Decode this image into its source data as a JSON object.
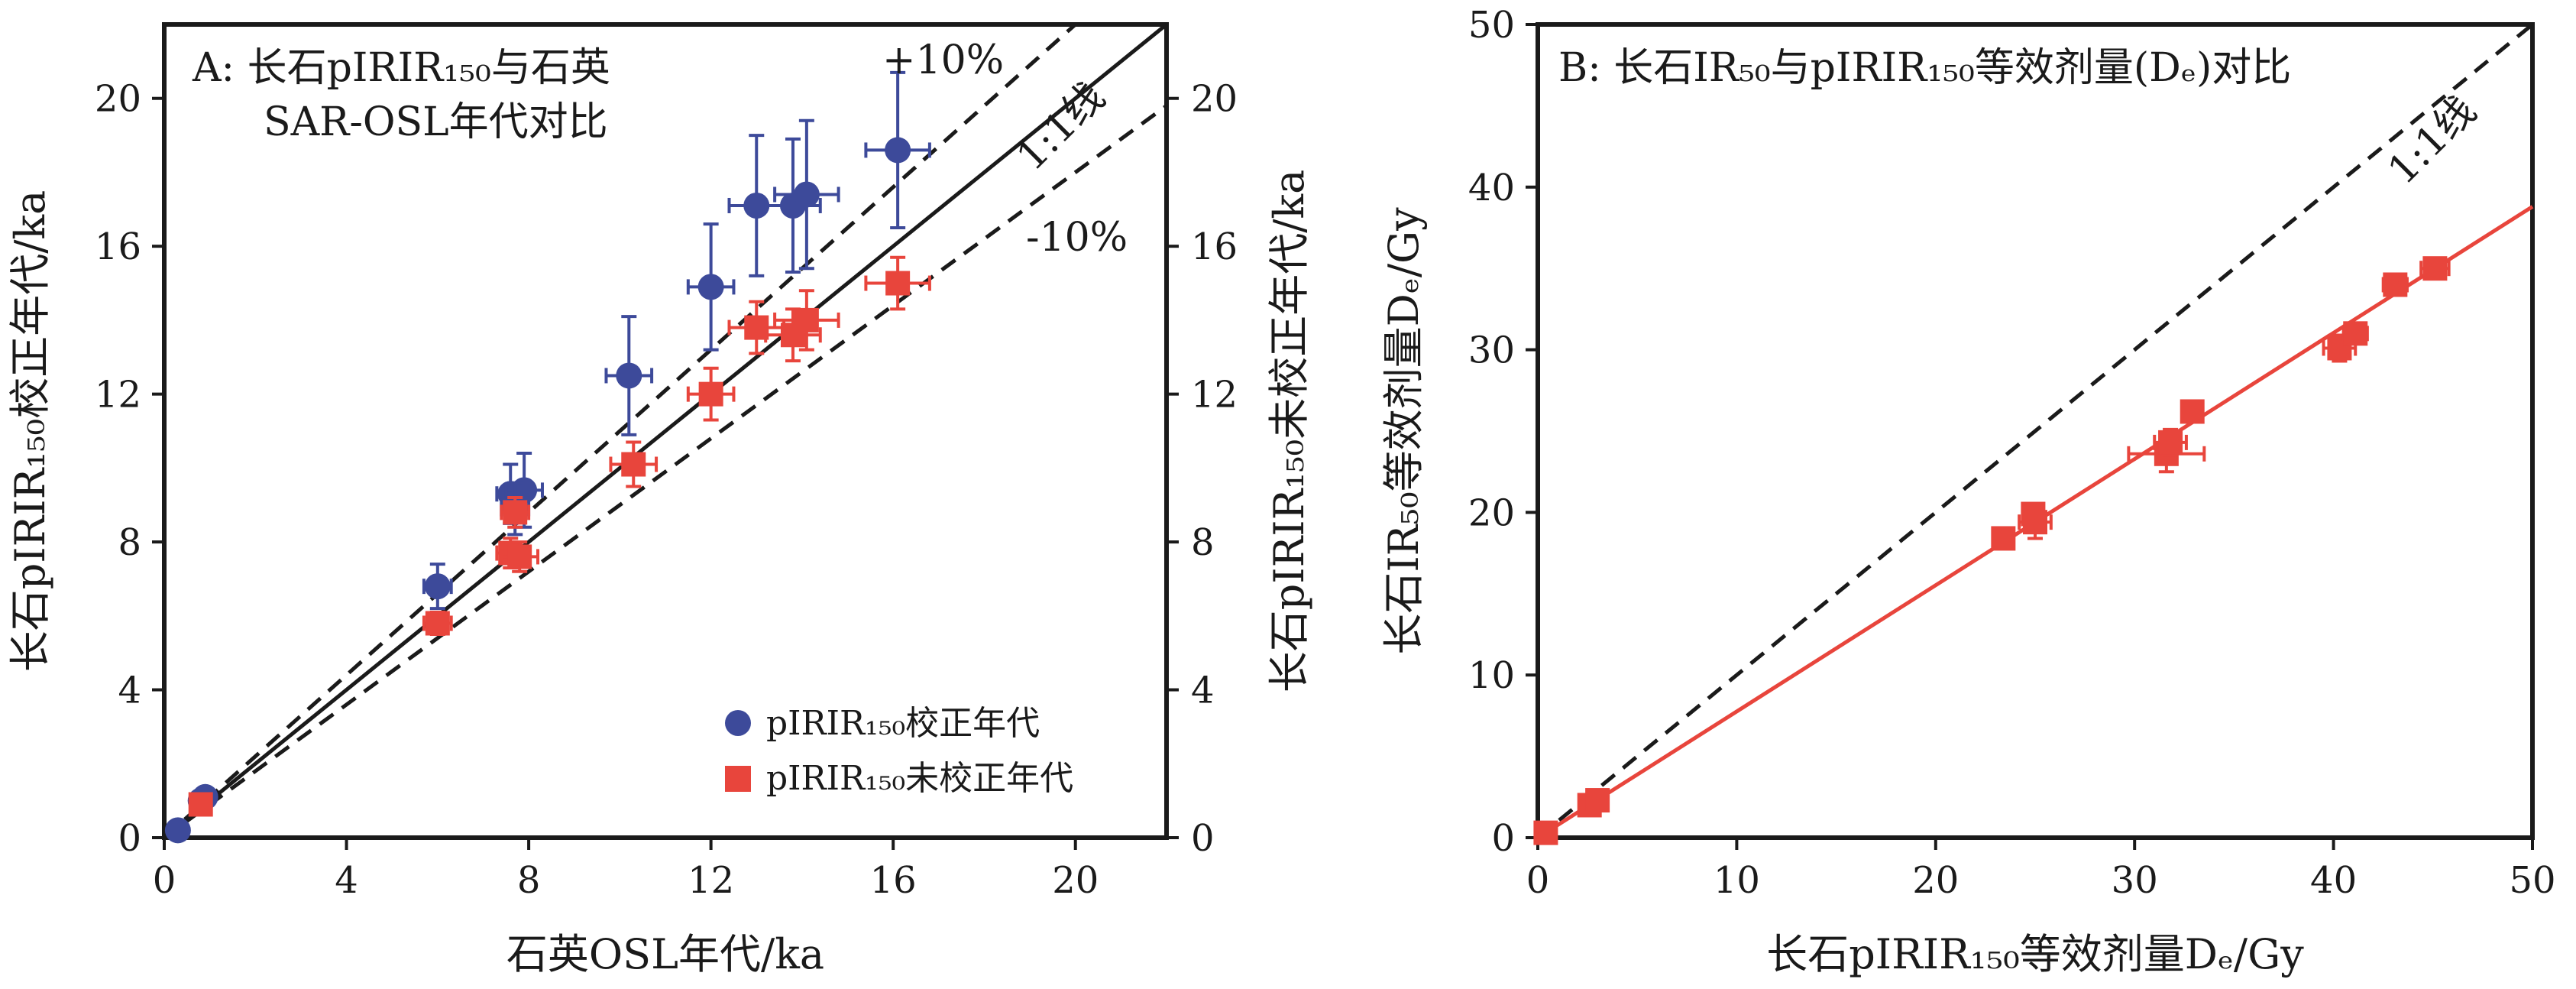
{
  "chart_data": [
    {
      "type": "scatter",
      "panel_label": "A",
      "title": "A: 长石pIRIR₁₅₀与石英",
      "subtitle": "SAR-OSL年代对比",
      "xlabel": "石英OSL年代/ka",
      "ylabel": "长石pIRIR₁₅₀校正年代/ka",
      "ylabel_right": "长石pIRIR₁₅₀未校正年代/ka",
      "xlim": [
        0,
        22
      ],
      "ylim": [
        0,
        22
      ],
      "xticks": [
        "0",
        "4",
        "8",
        "12",
        "16",
        "20"
      ],
      "yticks": [
        "0",
        "4",
        "8",
        "12",
        "16",
        "20"
      ],
      "yticks_right": [
        "0",
        "4",
        "8",
        "12",
        "16",
        "20"
      ],
      "grid": false,
      "legend_position": "bottom-right",
      "lines": [
        {
          "label": "1:1线",
          "slope": 1.0,
          "style": "solid"
        },
        {
          "label": "+10%",
          "slope": 1.1,
          "style": "dashed"
        },
        {
          "label": "-10%",
          "slope": 0.9,
          "style": "dashed"
        }
      ],
      "series": [
        {
          "name": "pIRIR₁₅₀校正年代",
          "marker": "circle",
          "color": "#3d4a9a",
          "points": [
            {
              "x": 0.3,
              "y": 0.2,
              "xerr": 0.05,
              "yerr": 0.05
            },
            {
              "x": 0.8,
              "y": 1.0,
              "xerr": 0.05,
              "yerr": 0.1
            },
            {
              "x": 0.9,
              "y": 1.1,
              "xerr": 0.05,
              "yerr": 0.1
            },
            {
              "x": 6.0,
              "y": 6.8,
              "xerr": 0.3,
              "yerr": 0.6
            },
            {
              "x": 7.6,
              "y": 9.3,
              "xerr": 0.3,
              "yerr": 0.8
            },
            {
              "x": 7.9,
              "y": 9.4,
              "xerr": 0.4,
              "yerr": 1.0
            },
            {
              "x": 7.7,
              "y": 8.9,
              "xerr": 0.3,
              "yerr": 0.7
            },
            {
              "x": 10.2,
              "y": 12.5,
              "xerr": 0.5,
              "yerr": 1.6
            },
            {
              "x": 12.0,
              "y": 14.9,
              "xerr": 0.5,
              "yerr": 1.7
            },
            {
              "x": 13.0,
              "y": 17.1,
              "xerr": 0.6,
              "yerr": 1.9
            },
            {
              "x": 13.8,
              "y": 17.1,
              "xerr": 0.6,
              "yerr": 1.8
            },
            {
              "x": 14.1,
              "y": 17.4,
              "xerr": 0.7,
              "yerr": 2.0
            },
            {
              "x": 16.1,
              "y": 18.6,
              "xerr": 0.7,
              "yerr": 2.1
            }
          ]
        },
        {
          "name": "pIRIR₁₅₀未校正年代",
          "marker": "square",
          "color": "#e8453c",
          "points": [
            {
              "x": 0.8,
              "y": 0.9,
              "xerr": 0.05,
              "yerr": 0.1
            },
            {
              "x": 6.0,
              "y": 5.8,
              "xerr": 0.3,
              "yerr": 0.3
            },
            {
              "x": 7.6,
              "y": 7.7,
              "xerr": 0.3,
              "yerr": 0.4
            },
            {
              "x": 7.8,
              "y": 7.6,
              "xerr": 0.4,
              "yerr": 0.4
            },
            {
              "x": 7.7,
              "y": 8.8,
              "xerr": 0.3,
              "yerr": 0.4
            },
            {
              "x": 10.3,
              "y": 10.1,
              "xerr": 0.5,
              "yerr": 0.6
            },
            {
              "x": 12.0,
              "y": 12.0,
              "xerr": 0.5,
              "yerr": 0.7
            },
            {
              "x": 13.0,
              "y": 13.8,
              "xerr": 0.6,
              "yerr": 0.7
            },
            {
              "x": 13.8,
              "y": 13.6,
              "xerr": 0.6,
              "yerr": 0.7
            },
            {
              "x": 14.1,
              "y": 14.0,
              "xerr": 0.7,
              "yerr": 0.8
            },
            {
              "x": 16.1,
              "y": 15.0,
              "xerr": 0.7,
              "yerr": 0.7
            }
          ]
        }
      ]
    },
    {
      "type": "scatter",
      "panel_label": "B",
      "title": "B: 长石IR₅₀与pIRIR₁₅₀等效剂量(Dₑ)对比",
      "xlabel": "长石pIRIR₁₅₀等效剂量Dₑ/Gy",
      "ylabel": "长石IR₅₀等效剂量Dₑ/Gy",
      "xlim": [
        0,
        50
      ],
      "ylim": [
        0,
        50
      ],
      "xticks": [
        "0",
        "10",
        "20",
        "30",
        "40",
        "50"
      ],
      "yticks": [
        "0",
        "10",
        "20",
        "30",
        "40",
        "50"
      ],
      "grid": false,
      "lines": [
        {
          "label": "1:1线",
          "slope": 1.0,
          "intercept": 0,
          "style": "dashed",
          "color": "#1a1a1a"
        },
        {
          "label": "",
          "slope": 0.776,
          "intercept": 0,
          "style": "solid",
          "color": "#e8453c"
        }
      ],
      "series": [
        {
          "name": "",
          "marker": "square",
          "color": "#e8453c",
          "points": [
            {
              "x": 0.4,
              "y": 0.3,
              "xerr": 0.1,
              "yerr": 0.1
            },
            {
              "x": 2.6,
              "y": 2.0,
              "xerr": 0.3,
              "yerr": 0.3
            },
            {
              "x": 3.0,
              "y": 2.3,
              "xerr": 0.3,
              "yerr": 0.3
            },
            {
              "x": 23.4,
              "y": 18.4,
              "xerr": 0.4,
              "yerr": 0.4
            },
            {
              "x": 24.9,
              "y": 19.9,
              "xerr": 0.4,
              "yerr": 0.6
            },
            {
              "x": 25.0,
              "y": 19.4,
              "xerr": 0.8,
              "yerr": 1.0
            },
            {
              "x": 31.6,
              "y": 23.6,
              "xerr": 1.9,
              "yerr": 1.1
            },
            {
              "x": 31.8,
              "y": 24.3,
              "xerr": 0.8,
              "yerr": 0.8
            },
            {
              "x": 32.9,
              "y": 26.2,
              "xerr": 0.4,
              "yerr": 0.4
            },
            {
              "x": 40.3,
              "y": 30.1,
              "xerr": 0.8,
              "yerr": 0.8
            },
            {
              "x": 41.1,
              "y": 31.0,
              "xerr": 0.6,
              "yerr": 0.6
            },
            {
              "x": 43.1,
              "y": 34.0,
              "xerr": 0.6,
              "yerr": 0.5
            },
            {
              "x": 45.1,
              "y": 35.0,
              "xerr": 0.7,
              "yerr": 0.4
            }
          ]
        }
      ]
    }
  ]
}
